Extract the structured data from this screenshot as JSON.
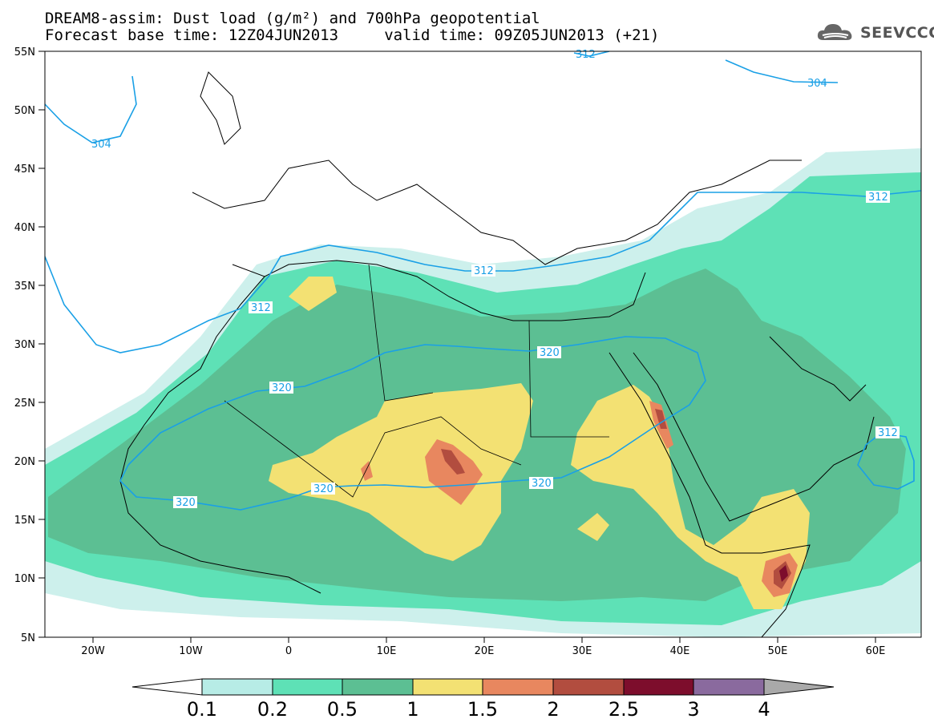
{
  "title": {
    "line1": "DREAM8-assim: Dust load (g/m²) and 700hPa geopotential",
    "line2": "Forecast base time: 12Z04JUN2013     valid time: 09Z05JUN2013 (+21)"
  },
  "logo": {
    "text": "SEEVCCC",
    "icon": "cloud-icon"
  },
  "axes": {
    "lat_labels": [
      "55N",
      "50N",
      "45N",
      "40N",
      "35N",
      "30N",
      "25N",
      "20N",
      "15N",
      "10N",
      "5N"
    ],
    "lon_labels": [
      "20W",
      "10W",
      "0",
      "10E",
      "20E",
      "30E",
      "40E",
      "50E",
      "60E"
    ]
  },
  "contours": {
    "color": "#1aa0e6",
    "labels": [
      {
        "id": "c312-top",
        "text": "312"
      },
      {
        "id": "c304-ne",
        "text": "304"
      },
      {
        "id": "c304-nw",
        "text": "304"
      },
      {
        "id": "c312-east",
        "text": "312"
      },
      {
        "id": "c312-med",
        "text": "312"
      },
      {
        "id": "c312-west",
        "text": "312"
      },
      {
        "id": "c320-egypt",
        "text": "320"
      },
      {
        "id": "c320-sahara",
        "text": "320"
      },
      {
        "id": "c320-sahel",
        "text": "320"
      },
      {
        "id": "c320-west",
        "text": "320"
      },
      {
        "id": "c320-east",
        "text": "320"
      },
      {
        "id": "c312-arabia",
        "text": "312"
      }
    ]
  },
  "colorbar": {
    "labels": [
      "0.1",
      "0.2",
      "0.5",
      "1",
      "1.5",
      "2",
      "2.5",
      "3",
      "4"
    ],
    "colors": [
      "#b7ece6",
      "#5ee1b6",
      "#5cbf93",
      "#f3e173",
      "#e8875f",
      "#b24d3f",
      "#7d0d2c",
      "#8a6a9e"
    ],
    "under_color": "#ffffff",
    "over_color": "#a9a9a9"
  },
  "legend_colors": {
    "very_light": "#cdf0ec",
    "light_green": "#5ee1b6",
    "mid_green": "#5cbf93",
    "yellow": "#f3e173",
    "orange": "#e8875f",
    "red_brown": "#b24d3f",
    "dark_red": "#7d0d2c"
  }
}
